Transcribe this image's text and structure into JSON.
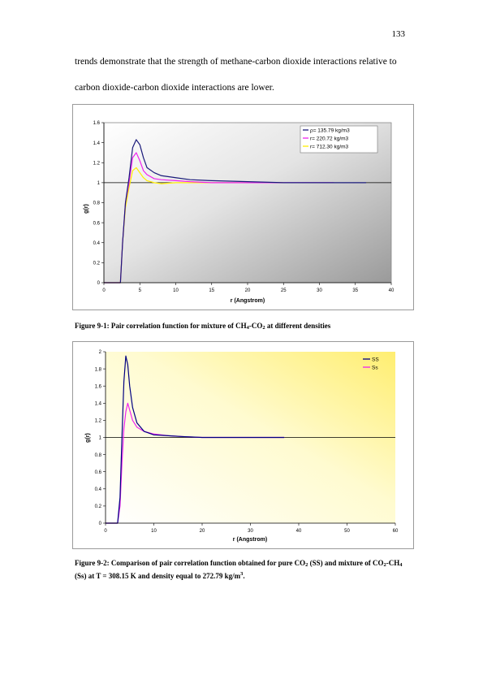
{
  "page": {
    "number": "133",
    "paragraph_lines": [
      "trends demonstrate that the strength of methane-carbon dioxide interactions relative to",
      "carbon dioxide-carbon dioxide interactions are lower."
    ]
  },
  "figure1": {
    "caption_parts": [
      "Figure 9-1: Pair correlation function for mixture of CH",
      "4",
      "-CO",
      "2",
      " at different densities"
    ]
  },
  "figure2": {
    "caption_parts": [
      "Figure 9-2: Comparison of pair correlation function obtained for pure CO",
      "2",
      " (SS) and mixture of CO",
      "2",
      "-CH",
      "4",
      " (Ss) at T = 308.15 K and density equal to 272.79 kg/m",
      "3",
      "."
    ]
  },
  "chart_data": [
    {
      "type": "line",
      "title": "",
      "xlabel": "r (Angstrom)",
      "ylabel": "g(r)",
      "xlim": [
        0,
        40
      ],
      "ylim": [
        0,
        1.6
      ],
      "xticks": [
        "0",
        "5",
        "10",
        "15",
        "20",
        "25",
        "30",
        "35",
        "40"
      ],
      "yticks": [
        "0",
        "0.2",
        "0.4",
        "0.6",
        "0.8",
        "1",
        "1.2",
        "1.4",
        "1.6"
      ],
      "reference_line": 1,
      "background": "gray gradient",
      "legend_position": "top-right",
      "series": [
        {
          "name": "ρ= 135.79 kg/m3",
          "color": "#1a1a7a",
          "x": [
            0,
            2.3,
            2.6,
            3.0,
            3.5,
            4.0,
            4.5,
            5.0,
            5.5,
            6.0,
            7,
            8,
            10,
            12,
            15,
            20,
            25,
            30,
            35,
            36.5
          ],
          "y": [
            0,
            0,
            0.4,
            0.8,
            1.05,
            1.35,
            1.43,
            1.38,
            1.25,
            1.15,
            1.1,
            1.07,
            1.05,
            1.03,
            1.02,
            1.01,
            1.0,
            1.0,
            1.0,
            1.0
          ]
        },
        {
          "name": "r= 220.72 kg/m3",
          "color": "#ee22ee",
          "x": [
            0,
            2.3,
            2.6,
            3.0,
            3.5,
            4.0,
            4.5,
            5.0,
            5.5,
            6.0,
            7,
            8,
            10,
            12,
            15,
            20,
            25,
            30,
            32
          ],
          "y": [
            0,
            0,
            0.4,
            0.8,
            1.0,
            1.25,
            1.3,
            1.22,
            1.12,
            1.08,
            1.04,
            1.03,
            1.02,
            1.01,
            1.0,
            1.0,
            1.0,
            1.0,
            1.0
          ]
        },
        {
          "name": "r= 712.30 kg/m3",
          "color": "#ffee00",
          "x": [
            0,
            2.3,
            2.6,
            3.0,
            3.5,
            4.0,
            4.5,
            5.0,
            5.5,
            6.0,
            7,
            8,
            10,
            12,
            15,
            20,
            25
          ],
          "y": [
            0,
            0,
            0.4,
            0.75,
            0.95,
            1.12,
            1.15,
            1.1,
            1.05,
            1.02,
            1.0,
            0.99,
            1.0,
            1.0,
            1.0,
            1.0,
            1.0
          ]
        }
      ]
    },
    {
      "type": "line",
      "title": "",
      "xlabel": "r (Angstrom)",
      "ylabel": "g(r)",
      "xlim": [
        0,
        60
      ],
      "ylim": [
        0,
        2
      ],
      "xticks": [
        "0",
        "10",
        "20",
        "30",
        "40",
        "50",
        "60"
      ],
      "yticks": [
        "0",
        "0.2",
        "0.4",
        "0.6",
        "0.8",
        "1",
        "1.2",
        "1.4",
        "1.6",
        "1.8",
        "2"
      ],
      "reference_line": 1,
      "background": "yellow gradient",
      "legend_position": "top-right",
      "series": [
        {
          "name": "SS",
          "color": "#000080",
          "x": [
            0,
            2.5,
            3.0,
            3.4,
            3.8,
            4.2,
            4.6,
            5.0,
            5.6,
            6.5,
            8,
            10,
            13,
            16,
            20,
            25,
            30,
            37
          ],
          "y": [
            0,
            0,
            0.3,
            1.0,
            1.65,
            1.95,
            1.85,
            1.6,
            1.35,
            1.17,
            1.07,
            1.03,
            1.02,
            1.01,
            1.0,
            1.0,
            1.0,
            1.0
          ]
        },
        {
          "name": "Ss",
          "color": "#ee22ee",
          "x": [
            0,
            2.5,
            3.0,
            3.4,
            3.8,
            4.2,
            4.6,
            5.0,
            5.6,
            6.5,
            8,
            10,
            13,
            16,
            20,
            25,
            30,
            37
          ],
          "y": [
            0,
            0,
            0.2,
            0.7,
            1.1,
            1.3,
            1.4,
            1.32,
            1.2,
            1.12,
            1.07,
            1.04,
            1.02,
            1.01,
            1.0,
            1.0,
            1.0,
            1.0
          ]
        }
      ]
    }
  ]
}
